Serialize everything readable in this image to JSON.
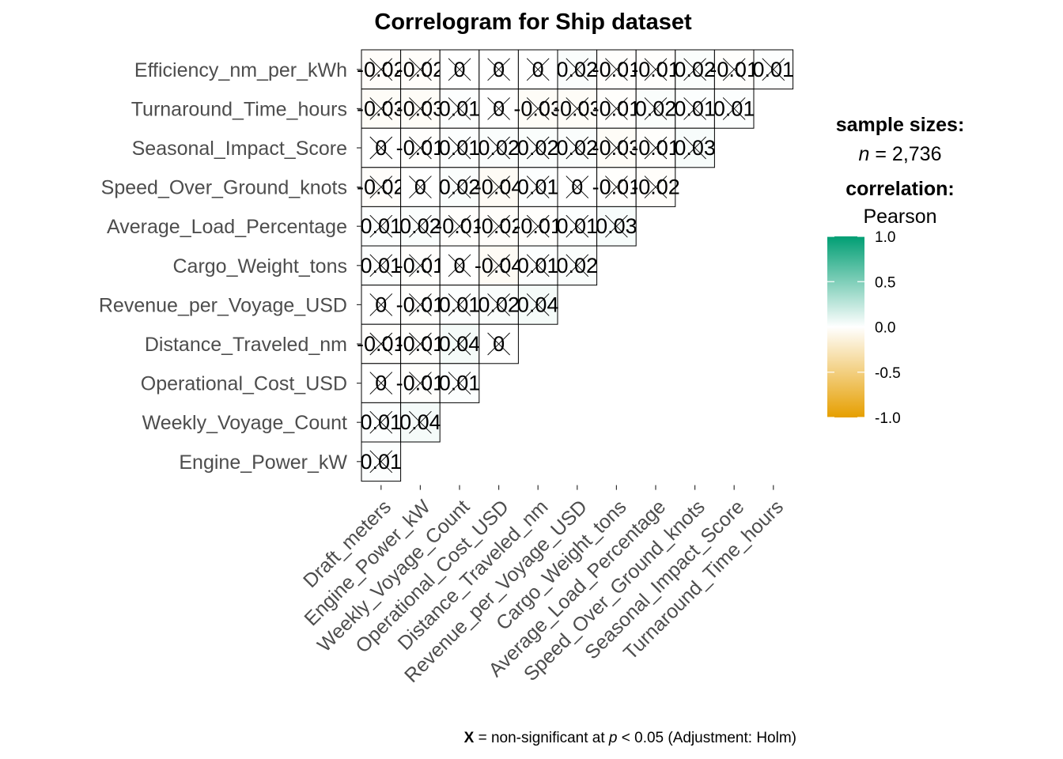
{
  "chart_data": {
    "type": "heatmap",
    "title": "Correlogram for Ship dataset",
    "x_labels": [
      "Draft_meters",
      "Engine_Power_kW",
      "Weekly_Voyage_Count",
      "Operational_Cost_USD",
      "Distance_Traveled_nm",
      "Revenue_per_Voyage_USD",
      "Cargo_Weight_tons",
      "Average_Load_Percentage",
      "Speed_Over_Ground_knots",
      "Seasonal_Impact_Score",
      "Turnaround_Time_hours"
    ],
    "y_labels": [
      "Efficiency_nm_per_kWh",
      "Turnaround_Time_hours",
      "Seasonal_Impact_Score",
      "Speed_Over_Ground_knots",
      "Average_Load_Percentage",
      "Cargo_Weight_tons",
      "Revenue_per_Voyage_USD",
      "Distance_Traveled_nm",
      "Operational_Cost_USD",
      "Weekly_Voyage_Count",
      "Engine_Power_kW"
    ],
    "values": [
      [
        -0.02,
        -0.02,
        0,
        0,
        0,
        0.02,
        -0.01,
        -0.01,
        0.02,
        -0.01,
        0.01
      ],
      [
        -0.03,
        -0.03,
        0.01,
        0,
        -0.03,
        -0.03,
        -0.01,
        0.02,
        0.01,
        0.01
      ],
      [
        0,
        -0.01,
        0.01,
        0.02,
        0.02,
        0.02,
        -0.03,
        -0.01,
        0.03
      ],
      [
        -0.02,
        0,
        0.02,
        -0.04,
        0.01,
        0,
        -0.01,
        -0.02
      ],
      [
        0.01,
        0.02,
        -0.01,
        -0.02,
        -0.01,
        0.01,
        0.03
      ],
      [
        0.01,
        -0.01,
        0,
        -0.04,
        0.01,
        0.02
      ],
      [
        0,
        -0.01,
        0.01,
        0.02,
        0.04
      ],
      [
        -0.01,
        -0.01,
        0.04,
        0
      ],
      [
        0,
        -0.01,
        0.01
      ],
      [
        0.01,
        0.04
      ],
      [
        0.01
      ]
    ],
    "value_labels": [
      [
        "-0.02",
        "-0.02",
        "0",
        "0",
        "0",
        "0.02",
        "-0.01",
        "-0.01",
        "0.02",
        "-0.01",
        "0.01"
      ],
      [
        "-0.03",
        "-0.03",
        "0.01",
        "0",
        "-0.03",
        "-0.03",
        "-0.01",
        "0.02",
        "0.01",
        "0.01"
      ],
      [
        "0",
        "-0.01",
        "0.01",
        "0.02",
        "0.02",
        "0.02",
        "-0.03",
        "-0.01",
        "0.03"
      ],
      [
        "-0.02",
        "0",
        "0.02",
        "-0.04",
        "0.01",
        "0",
        "-0.01",
        "-0.02"
      ],
      [
        "0.01",
        "0.02",
        "-0.01",
        "-0.02",
        "-0.01",
        "0.01",
        "0.03"
      ],
      [
        "0.01",
        "-0.01",
        "0",
        "-0.04",
        "0.01",
        "0.02"
      ],
      [
        "0",
        "-0.01",
        "0.01",
        "0.02",
        "0.04"
      ],
      [
        "-0.01",
        "-0.01",
        "0.04",
        "0"
      ],
      [
        "0",
        "-0.01",
        "0.01"
      ],
      [
        "0.01",
        "0.04"
      ],
      [
        "0.01"
      ]
    ],
    "significant": "none",
    "color_scale": {
      "low": "#E69F00",
      "mid": "#FFFFFF",
      "high": "#009E73",
      "limits": [
        -1,
        1
      ]
    },
    "legend": {
      "placement": "right",
      "sample_title": "sample sizes:",
      "n_italic": "n",
      "n_rest": " = 2,736",
      "corr_title": "correlation:",
      "method": "Pearson",
      "ticks": [
        1.0,
        0.5,
        0.0,
        -0.5,
        -1.0
      ],
      "tick_labels": [
        "1.0",
        "0.5",
        "0.0",
        "-0.5",
        "-1.0"
      ]
    },
    "caption": {
      "bold": "X",
      "part1": " = non-significant at ",
      "italic": "p",
      "part2": " < 0.05 (Adjustment: Holm)"
    }
  }
}
